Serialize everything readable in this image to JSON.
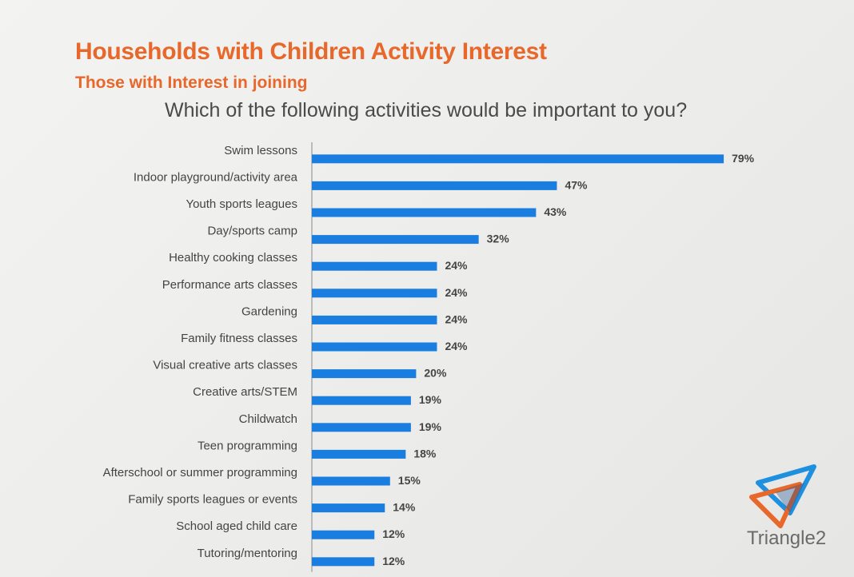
{
  "header": {
    "title": "Households with Children Activity Interest",
    "subtitle": "Those with Interest in joining",
    "question": "Which of the following activities would be important to you?"
  },
  "logo": {
    "icon": "triangle-logo-icon",
    "text": "Triangle2"
  },
  "colors": {
    "bar": "#1a7ee0",
    "title": "#e8672a",
    "axis": "#8a8a8a",
    "label": "#444444"
  },
  "chart_data": {
    "type": "bar",
    "orientation": "horizontal",
    "title": "Which of the following activities would be important to you?",
    "categories": [
      "Swim lessons",
      "Indoor playground/activity area",
      "Youth sports leagues",
      "Day/sports camp",
      "Healthy  cooking  classes",
      "Performance arts classes",
      "Gardening",
      "Family fitness classes",
      "Visual creative arts classes",
      "Creative arts/STEM",
      "Childwatch",
      "Teen programming",
      "Afterschool or summer programming",
      "Family sports leagues or events",
      "School aged child care",
      "Tutoring/mentoring"
    ],
    "values": [
      79,
      47,
      43,
      32,
      24,
      24,
      24,
      24,
      20,
      19,
      19,
      18,
      15,
      14,
      12,
      12
    ],
    "data_labels": [
      "79%",
      "47%",
      "43%",
      "32%",
      "24%",
      "24%",
      "24%",
      "24%",
      "20%",
      "19%",
      "19%",
      "18%",
      "15%",
      "14%",
      "12%",
      "12%"
    ],
    "value_unit": "%",
    "xlim": [
      0,
      100
    ],
    "grid": false,
    "legend": "none"
  }
}
